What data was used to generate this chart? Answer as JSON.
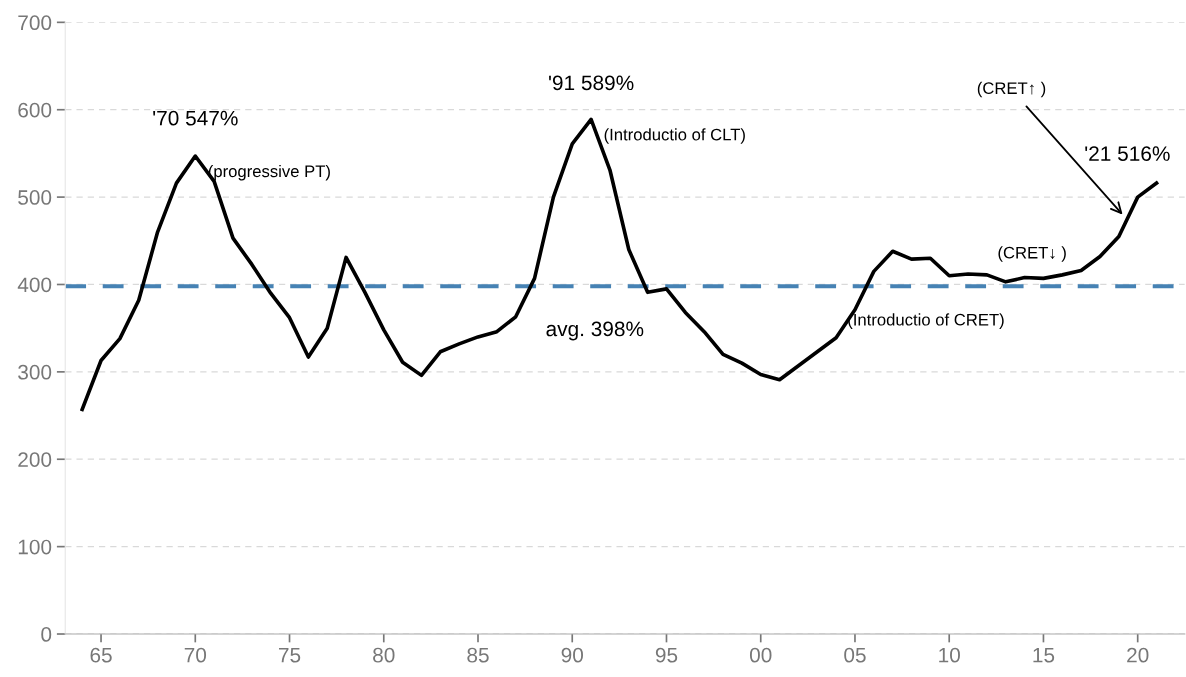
{
  "chart_data": {
    "type": "line",
    "x": [
      1964,
      1965,
      1966,
      1967,
      1968,
      1969,
      1970,
      1971,
      1972,
      1973,
      1974,
      1975,
      1976,
      1977,
      1978,
      1979,
      1980,
      1981,
      1982,
      1983,
      1984,
      1985,
      1986,
      1987,
      1988,
      1989,
      1990,
      1991,
      1992,
      1993,
      1994,
      1995,
      1996,
      1997,
      1998,
      1999,
      2000,
      2001,
      2002,
      2003,
      2004,
      2005,
      2006,
      2007,
      2008,
      2009,
      2010,
      2011,
      2012,
      2013,
      2014,
      2015,
      2016,
      2017,
      2018,
      2019,
      2020,
      2021
    ],
    "series": [
      {
        "color": "#000000",
        "values": [
          257,
          313,
          338,
          382,
          460,
          516,
          547,
          518,
          453,
          423,
          390,
          362,
          317,
          350,
          431,
          391,
          348,
          311,
          296,
          323,
          332,
          340,
          346,
          363,
          407,
          500,
          561,
          589,
          531,
          440,
          391,
          395,
          368,
          346,
          320,
          310,
          297,
          291,
          307,
          323,
          339,
          371,
          415,
          438,
          429,
          430,
          410,
          412,
          411,
          403,
          408,
          407,
          411,
          416,
          432,
          455,
          500,
          516
        ]
      }
    ],
    "xlim": [
      1963.1,
      2022.5
    ],
    "ylim": [
      0,
      700
    ],
    "xticks": [
      {
        "value": 1965,
        "label": "65"
      },
      {
        "value": 1970,
        "label": "70"
      },
      {
        "value": 1975,
        "label": "75"
      },
      {
        "value": 1980,
        "label": "80"
      },
      {
        "value": 1985,
        "label": "85"
      },
      {
        "value": 1990,
        "label": "90"
      },
      {
        "value": 1995,
        "label": "95"
      },
      {
        "value": 2000,
        "label": "00"
      },
      {
        "value": 2005,
        "label": "05"
      },
      {
        "value": 2010,
        "label": "10"
      },
      {
        "value": 2015,
        "label": "15"
      },
      {
        "value": 2020,
        "label": "20"
      }
    ],
    "yticks": [
      0,
      100,
      200,
      300,
      400,
      500,
      600,
      700
    ],
    "grid": "y",
    "ref_lines": [
      {
        "axis": "y",
        "value": 398,
        "label": "avg. 398%",
        "color": "#4682b4",
        "line_style": "dashed"
      }
    ],
    "annotations": [
      {
        "text": "'70 547%",
        "x": 1970,
        "y": 547
      },
      {
        "text": "(progressive PT)",
        "x": 1970,
        "y": 547
      },
      {
        "text": "'91 589%",
        "x": 1991,
        "y": 589
      },
      {
        "text": "(Introductio of CLT)",
        "x": 1991,
        "y": 589
      },
      {
        "text": "(Introductio of CRET)",
        "x": 2004,
        "y": 339
      },
      {
        "text": "(CRET↓ )",
        "x": 2013,
        "y": 403
      },
      {
        "text": "(CRET↑ )",
        "x": 2019.2,
        "y": 480
      },
      {
        "text": "'21 516%",
        "x": 2021,
        "y": 516
      }
    ]
  }
}
